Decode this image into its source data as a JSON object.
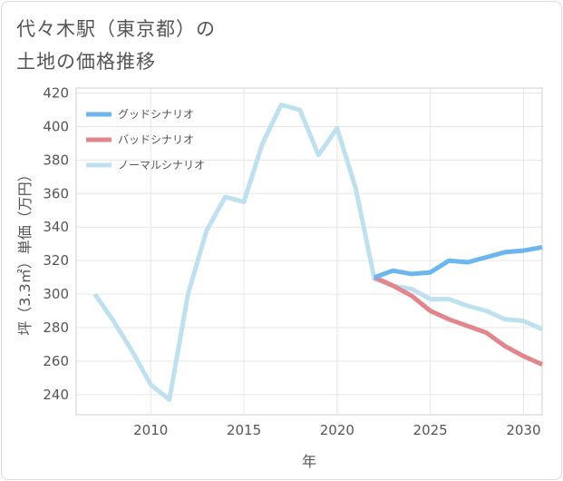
{
  "title": {
    "line1": "代々木駅（東京都）の",
    "line2": "土地の価格推移"
  },
  "colors": {
    "good": "#6cb6f0",
    "bad": "#e0868c",
    "normal": "#bfe0ee",
    "grid": "#e6e6e6",
    "text": "#555555"
  },
  "chart_data": {
    "type": "line",
    "title": "代々木駅（東京都）の土地の価格推移",
    "xlabel": "年",
    "ylabel": "坪（3.3㎡）単価（万円）",
    "xlim": [
      2006,
      2031
    ],
    "ylim": [
      228,
      423
    ],
    "xticks": [
      2010,
      2015,
      2020,
      2025,
      2030
    ],
    "yticks": [
      240,
      260,
      280,
      300,
      320,
      340,
      360,
      380,
      400,
      420
    ],
    "grid": true,
    "legend_position": "top-left",
    "series": [
      {
        "key": "good",
        "name": "グッドシナリオ",
        "x": [
          2022,
          2023,
          2024,
          2025,
          2026,
          2027,
          2028,
          2029,
          2030,
          2031
        ],
        "values": [
          310,
          314,
          312,
          313,
          320,
          319,
          322,
          325,
          326,
          328
        ]
      },
      {
        "key": "bad",
        "name": "バッドシナリオ",
        "x": [
          2022,
          2023,
          2024,
          2025,
          2026,
          2027,
          2028,
          2029,
          2030,
          2031
        ],
        "values": [
          310,
          305,
          299,
          290,
          285,
          281,
          277,
          269,
          263,
          258
        ]
      },
      {
        "key": "normal",
        "name": "ノーマルシナリオ",
        "x": [
          2007,
          2008,
          2009,
          2010,
          2011,
          2012,
          2013,
          2014,
          2015,
          2016,
          2017,
          2018,
          2019,
          2020,
          2021,
          2022,
          2023,
          2024,
          2025,
          2026,
          2027,
          2028,
          2029,
          2030,
          2031
        ],
        "values": [
          300,
          284,
          266,
          246,
          237,
          300,
          338,
          358,
          355,
          390,
          413,
          410,
          383,
          399,
          363,
          309,
          305,
          303,
          297,
          297,
          293,
          290,
          285,
          284,
          279
        ]
      }
    ]
  }
}
